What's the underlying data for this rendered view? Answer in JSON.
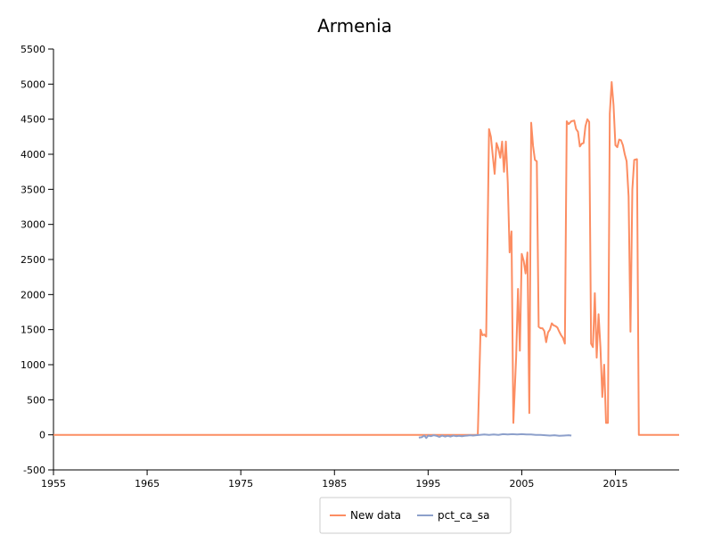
{
  "chart_data": {
    "type": "line",
    "title": "Armenia",
    "xlabel": "",
    "ylabel": "",
    "xlim": [
      1955,
      2021.8
    ],
    "ylim": [
      -500,
      5500
    ],
    "x_ticks": [
      1955,
      1965,
      1975,
      1985,
      1995,
      2005,
      2015
    ],
    "y_ticks": [
      -500,
      0,
      500,
      1000,
      1500,
      2000,
      2500,
      3000,
      3500,
      4000,
      4500,
      5000,
      5500
    ],
    "grid": false,
    "legend_position": "bottom-center",
    "series": [
      {
        "name": "New data",
        "color": "#fc8d62",
        "points": [
          [
            1955,
            0
          ],
          [
            1970,
            0
          ],
          [
            1985,
            0
          ],
          [
            1995,
            0
          ],
          [
            2000.3,
            0
          ],
          [
            2000.6,
            1500
          ],
          [
            2000.8,
            1420
          ],
          [
            2001.0,
            1430
          ],
          [
            2001.2,
            1400
          ],
          [
            2001.5,
            4360
          ],
          [
            2001.7,
            4250
          ],
          [
            2001.9,
            3980
          ],
          [
            2002.1,
            3720
          ],
          [
            2002.3,
            4160
          ],
          [
            2002.5,
            4080
          ],
          [
            2002.7,
            3950
          ],
          [
            2002.9,
            4180
          ],
          [
            2003.1,
            3750
          ],
          [
            2003.3,
            4180
          ],
          [
            2003.5,
            3600
          ],
          [
            2003.7,
            2600
          ],
          [
            2003.9,
            2900
          ],
          [
            2004.1,
            170
          ],
          [
            2004.4,
            1100
          ],
          [
            2004.6,
            2080
          ],
          [
            2004.8,
            1200
          ],
          [
            2005.0,
            2580
          ],
          [
            2005.2,
            2480
          ],
          [
            2005.4,
            2300
          ],
          [
            2005.6,
            2600
          ],
          [
            2005.8,
            310
          ],
          [
            2006.0,
            4450
          ],
          [
            2006.2,
            4120
          ],
          [
            2006.4,
            3920
          ],
          [
            2006.6,
            3900
          ],
          [
            2006.8,
            1540
          ],
          [
            2007.0,
            1520
          ],
          [
            2007.2,
            1520
          ],
          [
            2007.4,
            1480
          ],
          [
            2007.6,
            1320
          ],
          [
            2007.8,
            1460
          ],
          [
            2008.0,
            1500
          ],
          [
            2008.2,
            1590
          ],
          [
            2008.4,
            1560
          ],
          [
            2008.6,
            1550
          ],
          [
            2008.8,
            1530
          ],
          [
            2009.0,
            1470
          ],
          [
            2009.2,
            1420
          ],
          [
            2009.4,
            1380
          ],
          [
            2009.6,
            1300
          ],
          [
            2009.8,
            4470
          ],
          [
            2010.0,
            4430
          ],
          [
            2010.3,
            4470
          ],
          [
            2010.6,
            4480
          ],
          [
            2010.8,
            4360
          ],
          [
            2011.0,
            4320
          ],
          [
            2011.2,
            4110
          ],
          [
            2011.4,
            4150
          ],
          [
            2011.6,
            4160
          ],
          [
            2011.8,
            4400
          ],
          [
            2012.0,
            4500
          ],
          [
            2012.2,
            4460
          ],
          [
            2012.4,
            1300
          ],
          [
            2012.6,
            1250
          ],
          [
            2012.8,
            2020
          ],
          [
            2013.0,
            1100
          ],
          [
            2013.2,
            1720
          ],
          [
            2013.4,
            1250
          ],
          [
            2013.6,
            540
          ],
          [
            2013.8,
            1000
          ],
          [
            2014.0,
            170
          ],
          [
            2014.2,
            170
          ],
          [
            2014.4,
            4580
          ],
          [
            2014.6,
            5030
          ],
          [
            2014.8,
            4700
          ],
          [
            2015.0,
            4130
          ],
          [
            2015.2,
            4100
          ],
          [
            2015.4,
            4210
          ],
          [
            2015.6,
            4200
          ],
          [
            2015.8,
            4130
          ],
          [
            2016.0,
            4000
          ],
          [
            2016.2,
            3900
          ],
          [
            2016.4,
            3400
          ],
          [
            2016.6,
            1470
          ],
          [
            2016.8,
            3500
          ],
          [
            2017.0,
            3920
          ],
          [
            2017.3,
            3930
          ],
          [
            2017.5,
            0
          ],
          [
            2019.0,
            0
          ],
          [
            2021.8,
            0
          ]
        ]
      },
      {
        "name": "pct_ca_sa",
        "color": "#8da0cb",
        "points": [
          [
            1994.0,
            -40
          ],
          [
            1994.3,
            -35
          ],
          [
            1994.6,
            -10
          ],
          [
            1994.8,
            -45
          ],
          [
            1995.0,
            -10
          ],
          [
            1995.3,
            -20
          ],
          [
            1995.6,
            -5
          ],
          [
            1995.9,
            -15
          ],
          [
            1996.2,
            -30
          ],
          [
            1996.5,
            -10
          ],
          [
            1996.8,
            -25
          ],
          [
            1997.1,
            -15
          ],
          [
            1997.4,
            -25
          ],
          [
            1997.7,
            -10
          ],
          [
            1998.0,
            -20
          ],
          [
            1998.3,
            -15
          ],
          [
            1998.6,
            -20
          ],
          [
            1998.9,
            -15
          ],
          [
            1999.2,
            -10
          ],
          [
            1999.5,
            -5
          ],
          [
            1999.8,
            -10
          ],
          [
            2000.1,
            -5
          ],
          [
            2000.5,
            0
          ],
          [
            2001.0,
            5
          ],
          [
            2001.5,
            0
          ],
          [
            2002.0,
            5
          ],
          [
            2002.5,
            0
          ],
          [
            2003.0,
            10
          ],
          [
            2003.5,
            5
          ],
          [
            2004.0,
            10
          ],
          [
            2004.5,
            5
          ],
          [
            2005.0,
            10
          ],
          [
            2005.5,
            5
          ],
          [
            2006.0,
            5
          ],
          [
            2006.5,
            0
          ],
          [
            2007.0,
            0
          ],
          [
            2007.5,
            -5
          ],
          [
            2008.0,
            -10
          ],
          [
            2008.5,
            -5
          ],
          [
            2009.0,
            -15
          ],
          [
            2009.5,
            -10
          ],
          [
            2010.0,
            -5
          ],
          [
            2010.3,
            -10
          ]
        ]
      }
    ]
  }
}
